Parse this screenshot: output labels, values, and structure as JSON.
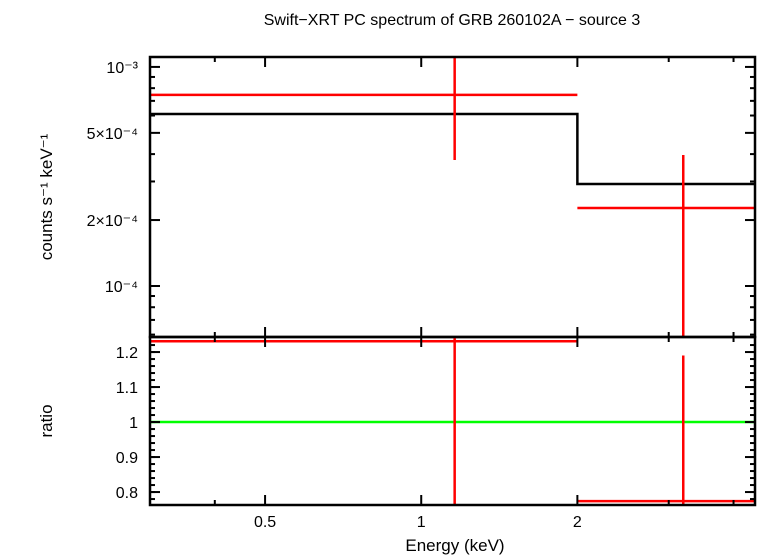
{
  "chart_data": {
    "type": "line",
    "title": "Swift−XRT PC spectrum of GRB 260102A − source 3",
    "xlabel": "Energy (keV)",
    "xscale": "log",
    "xlim": [
      0.3,
      4.4
    ],
    "x_ticks": [
      {
        "v": 0.5,
        "label": "0.5"
      },
      {
        "v": 1,
        "label": "1"
      },
      {
        "v": 2,
        "label": "2"
      }
    ],
    "colors": {
      "data": "#ff0000",
      "model": "#000000",
      "unity": "#00ff00"
    },
    "panels": [
      {
        "name": "spectrum",
        "ylabel": "counts s⁻¹ keV⁻¹",
        "yscale": "log",
        "ylim": [
          5.85e-05,
          0.00111
        ],
        "y_ticks": [
          {
            "v": 0.001,
            "label": "10⁻³"
          },
          {
            "v": 0.0005,
            "label": "5×10⁻⁴"
          },
          {
            "v": 0.0002,
            "label": "2×10⁻⁴"
          },
          {
            "v": 0.0001,
            "label": "10⁻⁴"
          }
        ],
        "data": [
          {
            "xlo": 0.3,
            "xhi": 2.0,
            "x": 1.16,
            "y": 0.000745,
            "ylo": 0.000376,
            "yhi": 0.0012
          },
          {
            "xlo": 2.0,
            "xhi": 4.4,
            "x": 3.2,
            "y": 0.000227,
            "ylo": 5e-05,
            "yhi": 0.000396
          }
        ],
        "model": [
          {
            "xlo": 0.3,
            "xhi": 2.0,
            "y": 0.00061
          },
          {
            "xlo": 2.0,
            "xhi": 4.4,
            "y": 0.000292
          }
        ]
      },
      {
        "name": "ratio",
        "ylabel": "ratio",
        "yscale": "linear",
        "ylim": [
          0.763,
          1.243
        ],
        "y_ticks": [
          {
            "v": 1.2,
            "label": "1.2"
          },
          {
            "v": 1.1,
            "label": "1.1"
          },
          {
            "v": 1.0,
            "label": "1"
          },
          {
            "v": 0.9,
            "label": "0.9"
          },
          {
            "v": 0.8,
            "label": "0.8"
          }
        ],
        "data": [
          {
            "xlo": 0.3,
            "xhi": 2.0,
            "x": 1.16,
            "y": 1.231,
            "ylo": 0.7,
            "yhi": 1.3
          },
          {
            "xlo": 2.0,
            "xhi": 4.4,
            "x": 3.2,
            "y": 0.774,
            "ylo": 0.7,
            "yhi": 1.19
          }
        ],
        "unity": 1.0
      }
    ]
  }
}
